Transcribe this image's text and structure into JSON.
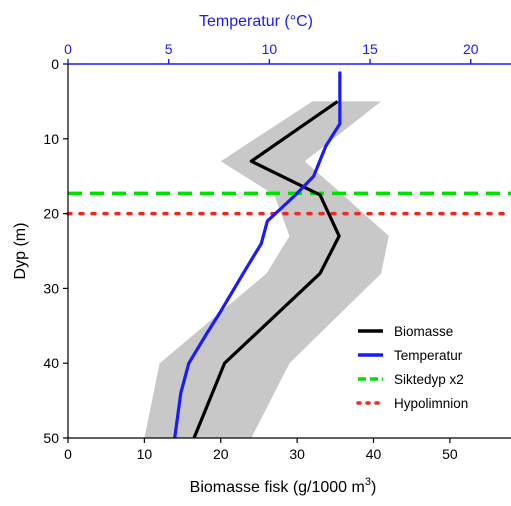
{
  "chart_data": {
    "type": "line",
    "title": "",
    "y_axis": {
      "label": "Dyp (m)",
      "range": [
        0,
        50
      ],
      "inverted": true,
      "ticks": [
        "0",
        "10",
        "20",
        "30",
        "40",
        "50"
      ]
    },
    "x_bottom": {
      "label_main": "Biomasse fisk (g/1000 m",
      "label_sup": "3",
      "label_close": ")",
      "range": [
        0,
        58
      ],
      "ticks": [
        "0",
        "10",
        "20",
        "30",
        "40",
        "50"
      ],
      "tick_values": [
        0,
        10,
        20,
        30,
        40,
        50
      ]
    },
    "x_top": {
      "label": "Temperatur (°C)",
      "range": [
        0,
        22
      ],
      "ticks": [
        "0",
        "5",
        "10",
        "15",
        "20"
      ],
      "tick_values": [
        0,
        5,
        10,
        15,
        20
      ],
      "color": "#1a1aff"
    },
    "series": [
      {
        "name": "Biomasse",
        "axis": "bottom",
        "color": "#000000",
        "points": [
          [
            35.3,
            5
          ],
          [
            24,
            13
          ],
          [
            33,
            17.5
          ],
          [
            35.5,
            23
          ],
          [
            33,
            28
          ],
          [
            20.5,
            40
          ],
          [
            16.5,
            50
          ]
        ]
      },
      {
        "name": "Temperatur",
        "axis": "top",
        "color": "#1a1aff",
        "points": [
          [
            13.5,
            1
          ],
          [
            13.5,
            8
          ],
          [
            12.8,
            11
          ],
          [
            12.2,
            15
          ],
          [
            11.3,
            17.5
          ],
          [
            10.5,
            19.5
          ],
          [
            9.9,
            21
          ],
          [
            9.6,
            24
          ],
          [
            8.7,
            28
          ],
          [
            7.6,
            33
          ],
          [
            6.9,
            36
          ],
          [
            6.0,
            40
          ],
          [
            5.6,
            44
          ],
          [
            5.3,
            50
          ]
        ]
      },
      {
        "name": "Biomasse band",
        "axis": "bottom",
        "color": "#c8c8c8",
        "upper": [
          [
            41,
            5
          ],
          [
            31,
            13
          ],
          [
            36,
            17.5
          ],
          [
            42,
            23
          ],
          [
            41,
            28
          ],
          [
            29,
            40
          ],
          [
            24,
            50
          ]
        ],
        "lower": [
          [
            32,
            5
          ],
          [
            20,
            13
          ],
          [
            27,
            17.5
          ],
          [
            29,
            23
          ],
          [
            26,
            28
          ],
          [
            12,
            40
          ],
          [
            10,
            50
          ]
        ]
      }
    ],
    "reference_lines": [
      {
        "name": "Siktedyp x2",
        "depth": 17.3,
        "color": "#00e000",
        "style": "dashed"
      },
      {
        "name": "Hypolimnion",
        "depth": 20,
        "color": "#ff2020",
        "style": "dotted"
      }
    ],
    "legend": {
      "position": "bottom-right",
      "items": [
        {
          "label": "Biomasse",
          "color": "#000000",
          "style": "solid"
        },
        {
          "label": "Temperatur",
          "color": "#1a1aff",
          "style": "solid"
        },
        {
          "label": "Siktedyp x2",
          "color": "#00e000",
          "style": "dashed"
        },
        {
          "label": "Hypolimnion",
          "color": "#ff2020",
          "style": "dotted"
        }
      ]
    },
    "grid": false
  }
}
